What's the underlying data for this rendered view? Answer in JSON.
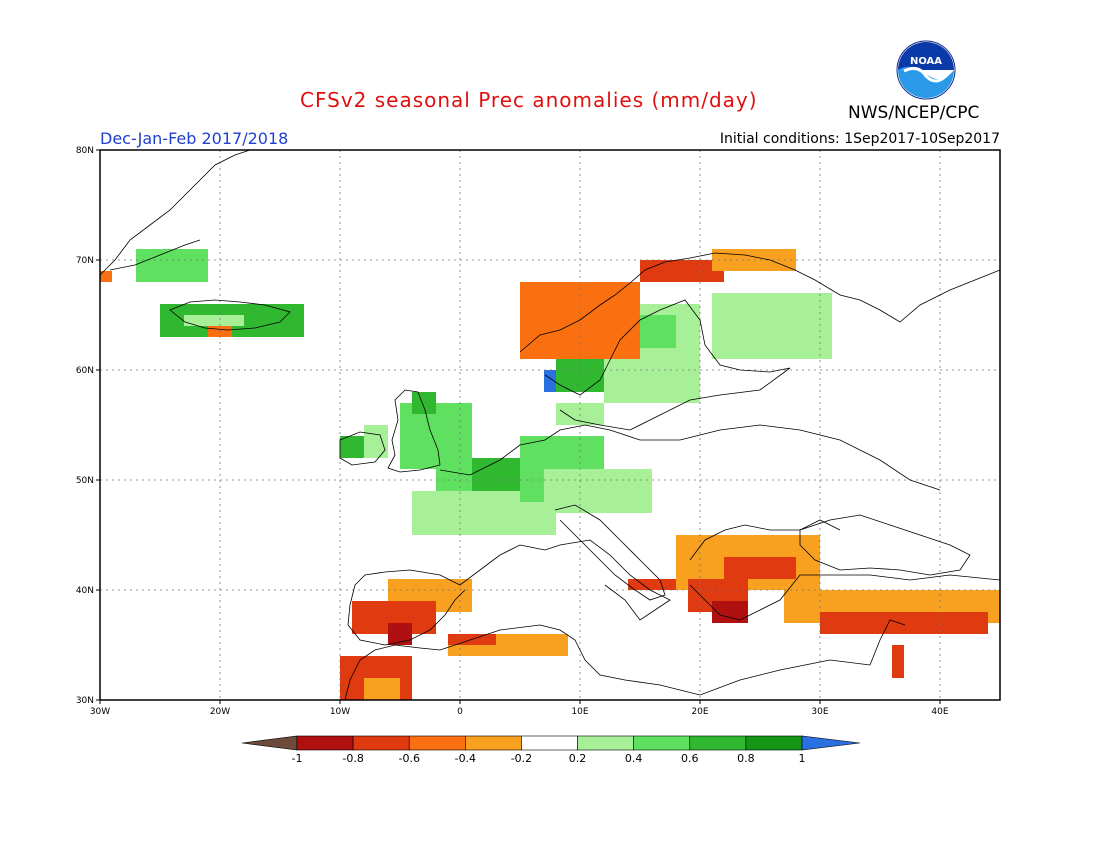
{
  "header": {
    "title": "CFSv2 seasonal Prec anomalies (mm/day)",
    "season": "Dec-Jan-Feb 2017/2018",
    "initial_conditions": "Initial conditions: 1Sep2017-10Sep2017",
    "agency": "NWS/NCEP/CPC",
    "logo_text": "NOAA"
  },
  "map": {
    "lon_range": [
      -30,
      45
    ],
    "lat_range": [
      30,
      80
    ],
    "grid": true,
    "lat_ticks": [
      "30N",
      "40N",
      "50N",
      "60N",
      "70N",
      "80N"
    ],
    "lon_ticks": [
      "30W",
      "20W",
      "10W",
      "0",
      "10E",
      "20E",
      "30E",
      "40E"
    ]
  },
  "colorbar": {
    "tick_labels": [
      "-1",
      "-0.8",
      "-0.6",
      "-0.4",
      "-0.2",
      "0.2",
      "0.4",
      "0.6",
      "0.8",
      "1"
    ],
    "colors": [
      "#6e4a3a",
      "#b01010",
      "#e03a10",
      "#fa7010",
      "#f8a020",
      "#ffffff",
      "#a8f098",
      "#60e060",
      "#30b830",
      "#149614",
      "#2a70e0"
    ]
  },
  "anomaly_regions": [
    {
      "name": "iceland",
      "color": "#30b830",
      "lon": [
        -25,
        -13
      ],
      "lat": [
        63,
        66
      ]
    },
    {
      "name": "iceland-west",
      "color": "#a8f098",
      "lon": [
        -23,
        -18
      ],
      "lat": [
        64,
        65
      ]
    },
    {
      "name": "iceland-south",
      "color": "#fa7010",
      "lon": [
        -21,
        -19
      ],
      "lat": [
        63,
        64
      ]
    },
    {
      "name": "greenland-east",
      "color": "#60e060",
      "lon": [
        -27,
        -21
      ],
      "lat": [
        68,
        71
      ]
    },
    {
      "name": "greenland-tip",
      "color": "#fa7010",
      "lon": [
        -30,
        -29
      ],
      "lat": [
        68,
        69
      ]
    },
    {
      "name": "ireland-west",
      "color": "#30b830",
      "lon": [
        -10,
        -8
      ],
      "lat": [
        52,
        54
      ]
    },
    {
      "name": "ireland",
      "color": "#a8f098",
      "lon": [
        -8,
        -6
      ],
      "lat": [
        52,
        55
      ]
    },
    {
      "name": "britain",
      "color": "#60e060",
      "lon": [
        -5,
        1
      ],
      "lat": [
        51,
        57
      ]
    },
    {
      "name": "britain-north",
      "color": "#30b830",
      "lon": [
        -4,
        -2
      ],
      "lat": [
        56,
        58
      ]
    },
    {
      "name": "france-north",
      "color": "#60e060",
      "lon": [
        -2,
        3
      ],
      "lat": [
        48,
        51
      ]
    },
    {
      "name": "france",
      "color": "#a8f098",
      "lon": [
        -4,
        8
      ],
      "lat": [
        45,
        49
      ]
    },
    {
      "name": "benelux-germany",
      "color": "#30b830",
      "lon": [
        1,
        7
      ],
      "lat": [
        49,
        52
      ]
    },
    {
      "name": "germany",
      "color": "#60e060",
      "lon": [
        5,
        12
      ],
      "lat": [
        48,
        54
      ]
    },
    {
      "name": "central",
      "color": "#a8f098",
      "lon": [
        7,
        16
      ],
      "lat": [
        47,
        51
      ]
    },
    {
      "name": "denmark",
      "color": "#a8f098",
      "lon": [
        8,
        12
      ],
      "lat": [
        55,
        57
      ]
    },
    {
      "name": "norway-south",
      "color": "#30b830",
      "lon": [
        8,
        12
      ],
      "lat": [
        58,
        61
      ]
    },
    {
      "name": "norway-blue",
      "color": "#2a70e0",
      "lon": [
        7,
        8
      ],
      "lat": [
        58,
        60
      ]
    },
    {
      "name": "sweden",
      "color": "#a8f098",
      "lon": [
        12,
        20
      ],
      "lat": [
        57,
        66
      ]
    },
    {
      "name": "sweden-mid",
      "color": "#60e060",
      "lon": [
        14,
        18
      ],
      "lat": [
        62,
        65
      ]
    },
    {
      "name": "finland",
      "color": "#a8f098",
      "lon": [
        21,
        31
      ],
      "lat": [
        61,
        67
      ]
    },
    {
      "name": "norway-coast",
      "color": "#fa7010",
      "lon": [
        5,
        15
      ],
      "lat": [
        61,
        68
      ]
    },
    {
      "name": "norway-north",
      "color": "#e03a10",
      "lon": [
        15,
        22
      ],
      "lat": [
        68,
        70
      ]
    },
    {
      "name": "lapland",
      "color": "#f8a020",
      "lon": [
        21,
        28
      ],
      "lat": [
        69,
        71
      ]
    },
    {
      "name": "iberia",
      "color": "#f8a020",
      "lon": [
        -6,
        1
      ],
      "lat": [
        38,
        41
      ]
    },
    {
      "name": "iberia-south",
      "color": "#e03a10",
      "lon": [
        -9,
        -2
      ],
      "lat": [
        36,
        39
      ]
    },
    {
      "name": "gibraltar",
      "color": "#b01010",
      "lon": [
        -6,
        -4
      ],
      "lat": [
        35,
        37
      ]
    },
    {
      "name": "morocco",
      "color": "#e03a10",
      "lon": [
        -10,
        -4
      ],
      "lat": [
        30,
        34
      ]
    },
    {
      "name": "morocco-south",
      "color": "#f8a020",
      "lon": [
        -8,
        -5
      ],
      "lat": [
        30,
        32
      ]
    },
    {
      "name": "algeria",
      "color": "#f8a020",
      "lon": [
        -1,
        9
      ],
      "lat": [
        34,
        36
      ]
    },
    {
      "name": "algeria-coast",
      "color": "#e03a10",
      "lon": [
        -1,
        3
      ],
      "lat": [
        35,
        36
      ]
    },
    {
      "name": "balkans",
      "color": "#f8a020",
      "lon": [
        18,
        30
      ],
      "lat": [
        40,
        45
      ]
    },
    {
      "name": "bulgaria",
      "color": "#e03a10",
      "lon": [
        22,
        28
      ],
      "lat": [
        41,
        43
      ]
    },
    {
      "name": "greece",
      "color": "#e03a10",
      "lon": [
        19,
        24
      ],
      "lat": [
        38,
        41
      ]
    },
    {
      "name": "greece-south",
      "color": "#b01010",
      "lon": [
        21,
        24
      ],
      "lat": [
        37,
        39
      ]
    },
    {
      "name": "italy-south",
      "color": "#e03a10",
      "lon": [
        14,
        18
      ],
      "lat": [
        40,
        41
      ]
    },
    {
      "name": "turkey",
      "color": "#f8a020",
      "lon": [
        27,
        45
      ],
      "lat": [
        37,
        40
      ]
    },
    {
      "name": "turkey-south",
      "color": "#e03a10",
      "lon": [
        30,
        44
      ],
      "lat": [
        36,
        38
      ]
    },
    {
      "name": "levant",
      "color": "#e03a10",
      "lon": [
        36,
        37
      ],
      "lat": [
        32,
        35
      ]
    }
  ]
}
